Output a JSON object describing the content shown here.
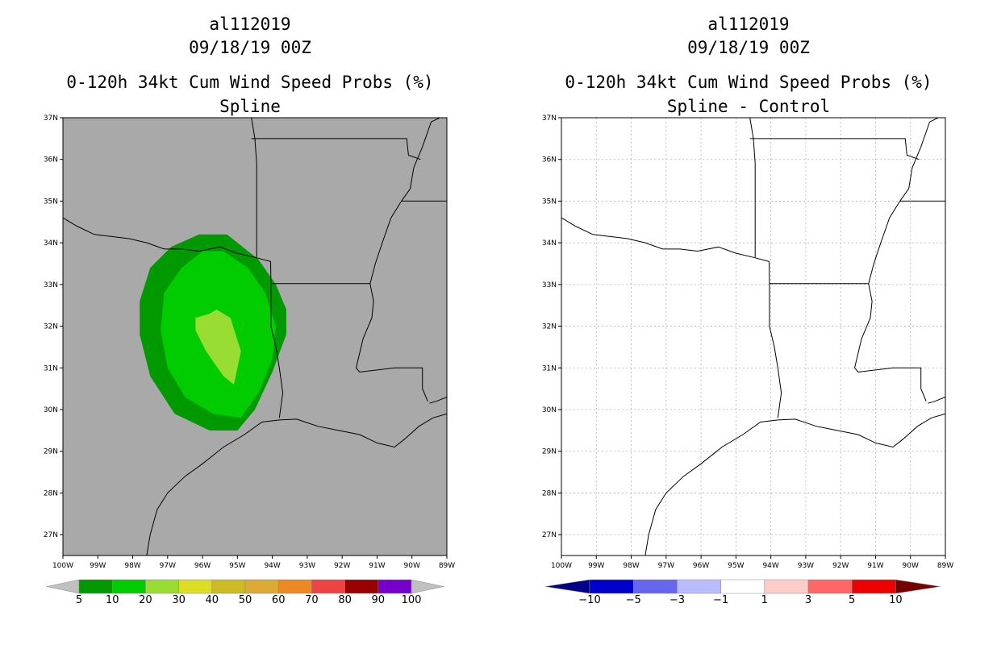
{
  "colors": {
    "map_background": "#a9a9a9",
    "coast": "#000000",
    "grid": "#b0b0b0",
    "plot_white": "#ffffff"
  },
  "chart_data": [
    {
      "type": "heatmap",
      "storm_id": "al112019",
      "date": "09/18/19 00Z",
      "title": "0-120h 34kt Cum Wind Speed Probs (%)",
      "subtitle": "Spline",
      "xlim": [
        -100,
        -89
      ],
      "ylim": [
        26.5,
        37
      ],
      "x_ticks": [
        "100W",
        "99W",
        "98W",
        "97W",
        "96W",
        "95W",
        "94W",
        "93W",
        "92W",
        "91W",
        "90W",
        "89W"
      ],
      "y_ticks": [
        "27N",
        "28N",
        "29N",
        "30N",
        "31N",
        "32N",
        "33N",
        "34N",
        "35N",
        "36N",
        "37N"
      ],
      "grid": false,
      "contours": [
        {
          "level": 5,
          "color": "#009900",
          "polygon": [
            [
              -95.3,
              34.2
            ],
            [
              -94.4,
              33.6
            ],
            [
              -93.9,
              33.0
            ],
            [
              -93.6,
              32.4
            ],
            [
              -93.6,
              31.8
            ],
            [
              -94.0,
              30.9
            ],
            [
              -94.5,
              30.0
            ],
            [
              -95.0,
              29.5
            ],
            [
              -95.8,
              29.5
            ],
            [
              -96.8,
              29.9
            ],
            [
              -97.5,
              30.8
            ],
            [
              -97.8,
              31.8
            ],
            [
              -97.8,
              32.6
            ],
            [
              -97.5,
              33.4
            ],
            [
              -96.9,
              33.9
            ],
            [
              -96.1,
              34.2
            ]
          ]
        },
        {
          "level": 10,
          "color": "#00cc00",
          "polygon": [
            [
              -95.4,
              33.8
            ],
            [
              -94.7,
              33.4
            ],
            [
              -94.2,
              32.8
            ],
            [
              -93.9,
              32.0
            ],
            [
              -94.0,
              31.2
            ],
            [
              -94.4,
              30.4
            ],
            [
              -94.9,
              29.8
            ],
            [
              -95.7,
              29.9
            ],
            [
              -96.5,
              30.3
            ],
            [
              -97.0,
              31.0
            ],
            [
              -97.2,
              31.9
            ],
            [
              -97.1,
              32.8
            ],
            [
              -96.6,
              33.4
            ],
            [
              -96.0,
              33.8
            ]
          ]
        },
        {
          "level": 20,
          "color": "#99dd33",
          "polygon": [
            [
              -95.6,
              32.4
            ],
            [
              -95.2,
              32.2
            ],
            [
              -94.9,
              31.4
            ],
            [
              -95.1,
              30.6
            ],
            [
              -95.4,
              30.8
            ],
            [
              -95.9,
              31.4
            ],
            [
              -96.2,
              31.9
            ],
            [
              -96.2,
              32.2
            ],
            [
              -95.8,
              32.3
            ]
          ]
        }
      ],
      "colorbar": {
        "labels": [
          "5",
          "10",
          "20",
          "30",
          "40",
          "50",
          "60",
          "70",
          "80",
          "90",
          "100"
        ],
        "colors": [
          "#009900",
          "#00cc00",
          "#99dd33",
          "#dddd22",
          "#ccbb22",
          "#ddaa33",
          "#ee8822",
          "#ee4444",
          "#990000",
          "#7700cc"
        ],
        "under_color": "#c0c0c0",
        "over_color": "#c0c0c0"
      }
    },
    {
      "type": "heatmap",
      "storm_id": "al112019",
      "date": "09/18/19 00Z",
      "title": "0-120h 34kt Cum Wind Speed Probs (%)",
      "subtitle": "Spline - Control",
      "xlim": [
        -100,
        -89
      ],
      "ylim": [
        26.5,
        37
      ],
      "x_ticks": [
        "100W",
        "99W",
        "98W",
        "97W",
        "96W",
        "95W",
        "94W",
        "93W",
        "92W",
        "91W",
        "90W",
        "89W"
      ],
      "y_ticks": [
        "27N",
        "28N",
        "29N",
        "30N",
        "31N",
        "32N",
        "33N",
        "34N",
        "35N",
        "36N",
        "37N"
      ],
      "grid": true,
      "contours": [],
      "colorbar": {
        "labels": [
          "−10",
          "−5",
          "−3",
          "−1",
          "1",
          "3",
          "5",
          "10"
        ],
        "colors": [
          "#0000cc",
          "#6666ee",
          "#bbbbff",
          "#ffffff",
          "#ffcccc",
          "#ff6666",
          "#ee0000"
        ],
        "under_color": "#000088",
        "over_color": "#770000"
      }
    }
  ]
}
